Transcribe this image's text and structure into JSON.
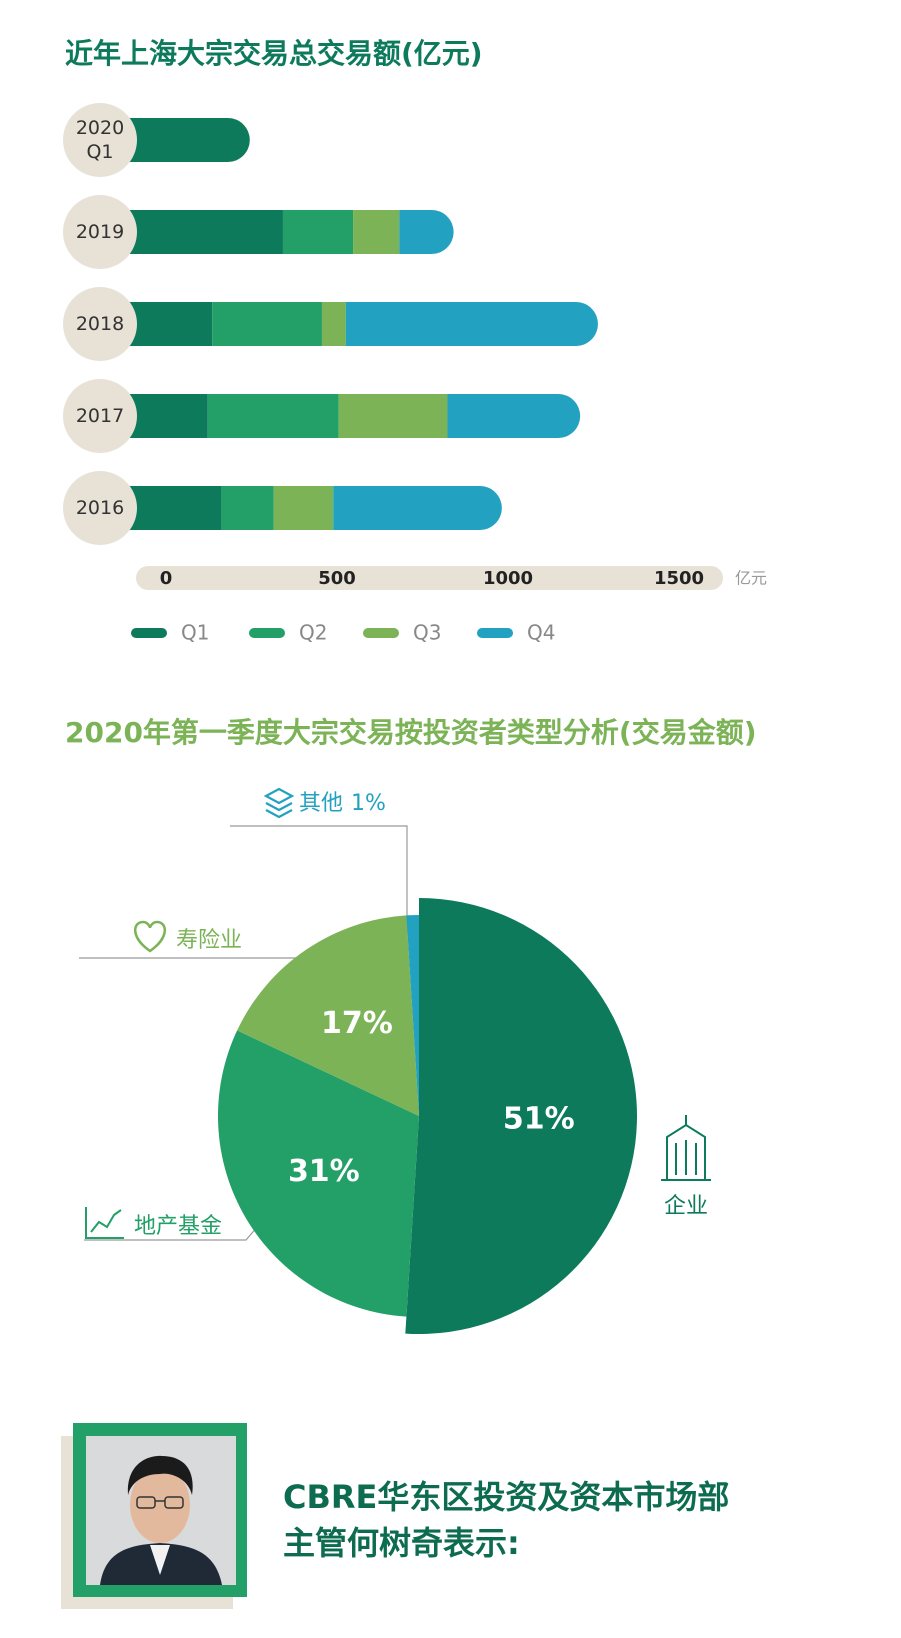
{
  "chart_data": [
    {
      "type": "bar",
      "orientation": "horizontal",
      "stacked": true,
      "title": "近年上海大宗交易总交易额(亿元)",
      "categories": [
        "2020 Q1",
        "2019",
        "2018",
        "2017",
        "2016"
      ],
      "series": [
        {
          "name": "Q1",
          "color": "#0d7a5c",
          "values": [
            245,
            342,
            135,
            122,
            162
          ]
        },
        {
          "name": "Q2",
          "color": "#23a067",
          "values": [
            null,
            205,
            321,
            383,
            153
          ]
        },
        {
          "name": "Q3",
          "color": "#7bb356",
          "values": [
            null,
            135,
            70,
            318,
            174
          ]
        },
        {
          "name": "Q4",
          "color": "#22a1c0",
          "values": [
            null,
            159,
            737,
            388,
            493
          ]
        }
      ],
      "xlim": [
        0,
        1500
      ],
      "xticks": [
        0,
        500,
        1000,
        1500
      ],
      "x_unit": "亿元"
    },
    {
      "type": "pie",
      "title": "2020年第一季度大宗交易按投资者类型分析(交易金额)",
      "categories": [
        "企业",
        "地产基金",
        "寿险业",
        "其他"
      ],
      "values": [
        51,
        31,
        17,
        1
      ],
      "value_labels": [
        "51%",
        "31%",
        "17%",
        "1%"
      ],
      "colors": [
        "#0d7a5c",
        "#23a067",
        "#7bb356",
        "#22a1c0"
      ]
    }
  ],
  "speaker": {
    "lines": [
      "CBRE华东区投资及资本市场部",
      "主管何树奇表示:"
    ]
  }
}
